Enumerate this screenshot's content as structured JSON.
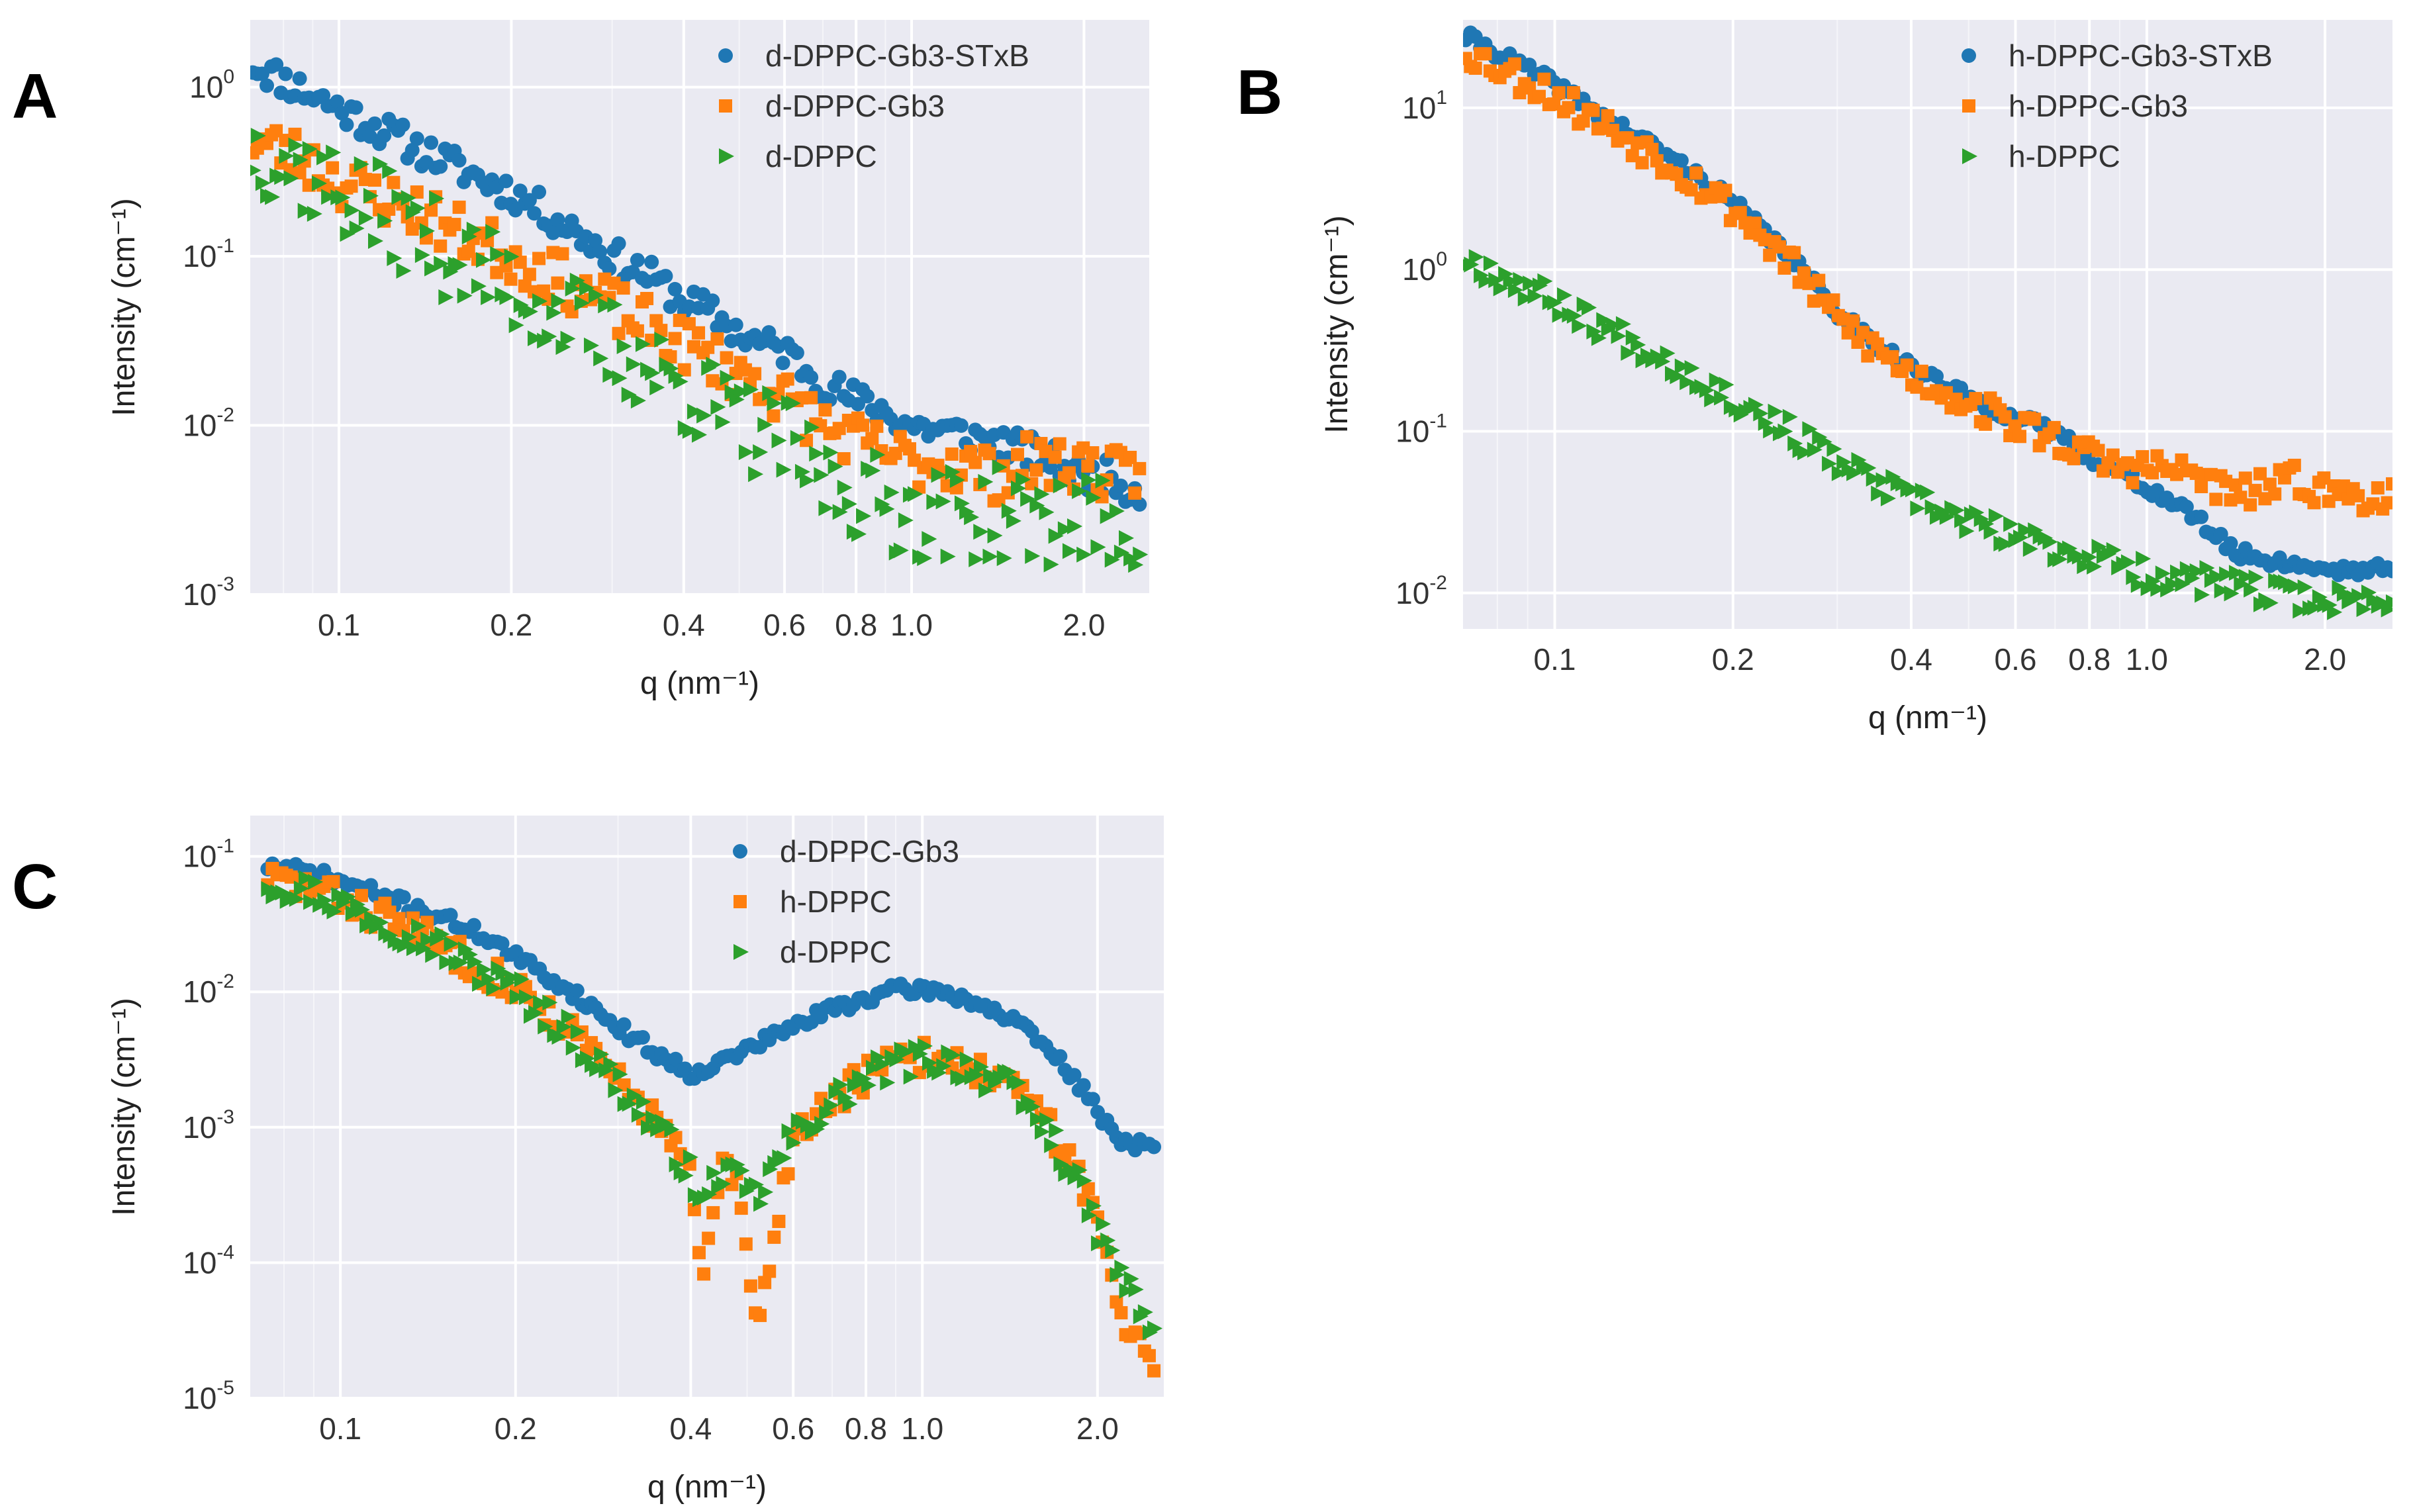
{
  "chart_data": [
    {
      "panel": "A",
      "type": "scatter",
      "xscale": "log",
      "yscale": "log",
      "xlim": [
        0.07,
        2.6
      ],
      "ylim": [
        0.001,
        2.5
      ],
      "xlabel": "q (nm⁻¹)",
      "ylabel": "Intensity (cm⁻¹)",
      "xticks": [
        0.1,
        0.2,
        0.4,
        0.6,
        0.8,
        1.0,
        2.0
      ],
      "xtick_labels": [
        "0.1",
        "0.2",
        "0.4",
        "0.6",
        "0.8",
        "1.0",
        "2.0"
      ],
      "yticks": [
        0.001,
        0.01,
        0.1,
        1
      ],
      "ytick_exponents": [
        "-3",
        "-2",
        "-1",
        "0"
      ],
      "ytick_base": "10",
      "legend_position": "top-right",
      "series": [
        {
          "name": "d-DPPC-Gb3-STxB",
          "marker": "circle",
          "color": "#1f77b4",
          "x": [
            0.07,
            0.08,
            0.09,
            0.1,
            0.12,
            0.14,
            0.16,
            0.18,
            0.2,
            0.23,
            0.26,
            0.3,
            0.35,
            0.4,
            0.45,
            0.5,
            0.55,
            0.6,
            0.65,
            0.7,
            0.8,
            0.9,
            1.0,
            1.2,
            1.4,
            1.6,
            1.8,
            2.0,
            2.2,
            2.5
          ],
          "values": [
            1.4,
            1.1,
            0.9,
            0.75,
            0.55,
            0.42,
            0.34,
            0.28,
            0.24,
            0.18,
            0.14,
            0.1,
            0.075,
            0.055,
            0.045,
            0.035,
            0.03,
            0.028,
            0.022,
            0.018,
            0.014,
            0.012,
            0.01,
            0.009,
            0.008,
            0.007,
            0.006,
            0.005,
            0.005,
            0.004
          ],
          "scatter": 0.1,
          "seed": 11
        },
        {
          "name": "d-DPPC-Gb3",
          "marker": "square",
          "color": "#ff7f0e",
          "x": [
            0.07,
            0.08,
            0.09,
            0.1,
            0.12,
            0.14,
            0.16,
            0.18,
            0.2,
            0.23,
            0.26,
            0.3,
            0.35,
            0.4,
            0.45,
            0.5,
            0.55,
            0.6,
            0.65,
            0.7,
            0.8,
            0.9,
            1.0,
            1.2,
            1.4,
            1.6,
            1.8,
            2.0,
            2.2,
            2.5
          ],
          "values": [
            0.5,
            0.42,
            0.35,
            0.28,
            0.22,
            0.18,
            0.14,
            0.12,
            0.1,
            0.08,
            0.065,
            0.05,
            0.038,
            0.03,
            0.025,
            0.02,
            0.018,
            0.014,
            0.012,
            0.01,
            0.008,
            0.007,
            0.006,
            0.006,
            0.005,
            0.006,
            0.006,
            0.006,
            0.005,
            0.005
          ],
          "scatter": 0.16,
          "seed": 23
        },
        {
          "name": "d-DPPC",
          "marker": "triangle-right",
          "color": "#2ca02c",
          "x": [
            0.07,
            0.08,
            0.09,
            0.1,
            0.12,
            0.14,
            0.16,
            0.18,
            0.2,
            0.23,
            0.26,
            0.3,
            0.35,
            0.4,
            0.45,
            0.5,
            0.55,
            0.6,
            0.65,
            0.7,
            0.8,
            0.9,
            1.0,
            1.2,
            1.4,
            1.6,
            1.8,
            2.0,
            2.2,
            2.5
          ],
          "values": [
            0.45,
            0.38,
            0.3,
            0.24,
            0.18,
            0.13,
            0.1,
            0.08,
            0.065,
            0.05,
            0.04,
            0.03,
            0.022,
            0.017,
            0.013,
            0.01,
            0.009,
            0.008,
            0.006,
            0.005,
            0.004,
            0.0035,
            0.003,
            0.003,
            0.003,
            0.0028,
            0.0028,
            0.0027,
            0.0026,
            0.0025
          ],
          "scatter": 0.28,
          "seed": 37
        }
      ]
    },
    {
      "panel": "B",
      "type": "scatter",
      "xscale": "log",
      "yscale": "log",
      "xlim": [
        0.07,
        2.6
      ],
      "ylim": [
        0.006,
        35
      ],
      "xlabel": "q (nm⁻¹)",
      "ylabel": "Intensity (cm⁻¹)",
      "xticks": [
        0.1,
        0.2,
        0.4,
        0.6,
        0.8,
        1.0,
        2.0
      ],
      "xtick_labels": [
        "0.1",
        "0.2",
        "0.4",
        "0.6",
        "0.8",
        "1.0",
        "2.0"
      ],
      "yticks": [
        0.01,
        0.1,
        1,
        10
      ],
      "ytick_exponents": [
        "-2",
        "-1",
        "0",
        "1"
      ],
      "ytick_base": "10",
      "legend_position": "top-right",
      "series": [
        {
          "name": "h-DPPC-Gb3-STxB",
          "marker": "circle",
          "color": "#1f77b4",
          "x": [
            0.07,
            0.08,
            0.1,
            0.12,
            0.15,
            0.18,
            0.2,
            0.25,
            0.3,
            0.35,
            0.4,
            0.5,
            0.6,
            0.7,
            0.8,
            0.9,
            1.0,
            1.2,
            1.4,
            1.6,
            1.8,
            2.0,
            2.3,
            2.6
          ],
          "values": [
            28,
            22,
            14,
            9,
            5.5,
            3.5,
            2.6,
            1.2,
            0.55,
            0.35,
            0.25,
            0.16,
            0.12,
            0.1,
            0.07,
            0.055,
            0.045,
            0.03,
            0.018,
            0.016,
            0.015,
            0.014,
            0.014,
            0.014
          ],
          "scatter": 0.04,
          "seed": 41
        },
        {
          "name": "h-DPPC-Gb3",
          "marker": "square",
          "color": "#ff7f0e",
          "x": [
            0.07,
            0.08,
            0.1,
            0.12,
            0.15,
            0.18,
            0.2,
            0.25,
            0.3,
            0.35,
            0.4,
            0.5,
            0.6,
            0.7,
            0.8,
            0.9,
            1.0,
            1.2,
            1.4,
            1.6,
            1.8,
            2.0,
            2.3,
            2.6
          ],
          "values": [
            23,
            18,
            12,
            8,
            5,
            3.2,
            2.4,
            1.1,
            0.5,
            0.32,
            0.22,
            0.15,
            0.11,
            0.09,
            0.07,
            0.06,
            0.06,
            0.055,
            0.04,
            0.045,
            0.05,
            0.042,
            0.04,
            0.04
          ],
          "scatter": 0.1,
          "seed": 53
        },
        {
          "name": "h-DPPC",
          "marker": "triangle-right",
          "color": "#2ca02c",
          "x": [
            0.07,
            0.08,
            0.1,
            0.12,
            0.15,
            0.18,
            0.2,
            0.25,
            0.3,
            0.35,
            0.4,
            0.5,
            0.6,
            0.7,
            0.8,
            0.9,
            1.0,
            1.2,
            1.4,
            1.6,
            1.8,
            2.0,
            2.3,
            2.6
          ],
          "values": [
            1.2,
            0.95,
            0.65,
            0.45,
            0.3,
            0.2,
            0.16,
            0.1,
            0.065,
            0.048,
            0.038,
            0.028,
            0.022,
            0.019,
            0.017,
            0.015,
            0.013,
            0.012,
            0.011,
            0.01,
            0.0095,
            0.009,
            0.009,
            0.009
          ],
          "scatter": 0.09,
          "seed": 67
        }
      ]
    },
    {
      "panel": "C",
      "type": "scatter",
      "xscale": "log",
      "yscale": "log",
      "xlim": [
        0.07,
        2.6
      ],
      "ylim": [
        1e-05,
        0.2
      ],
      "xlabel": "q (nm⁻¹)",
      "ylabel": "Intensity (cm⁻¹)",
      "xticks": [
        0.1,
        0.2,
        0.4,
        0.6,
        0.8,
        1.0,
        2.0
      ],
      "xtick_labels": [
        "0.1",
        "0.2",
        "0.4",
        "0.6",
        "0.8",
        "1.0",
        "2.0"
      ],
      "yticks": [
        1e-05,
        0.0001,
        0.001,
        0.01,
        0.1
      ],
      "ytick_exponents": [
        "-5",
        "-4",
        "-3",
        "-2",
        "-1"
      ],
      "ytick_base": "10",
      "legend_position": "top-right",
      "series": [
        {
          "name": "d-DPPC-Gb3",
          "marker": "circle",
          "color": "#1f77b4",
          "x": [
            0.075,
            0.09,
            0.1,
            0.12,
            0.15,
            0.18,
            0.2,
            0.25,
            0.3,
            0.35,
            0.4,
            0.45,
            0.5,
            0.6,
            0.7,
            0.8,
            0.9,
            1.0,
            1.1,
            1.2,
            1.4,
            1.6,
            1.8,
            2.0,
            2.2,
            2.5
          ],
          "values": [
            0.085,
            0.075,
            0.065,
            0.05,
            0.035,
            0.025,
            0.018,
            0.01,
            0.0055,
            0.0035,
            0.0025,
            0.003,
            0.0038,
            0.0055,
            0.0075,
            0.009,
            0.0102,
            0.0105,
            0.0098,
            0.0088,
            0.0065,
            0.0042,
            0.0025,
            0.0013,
            0.0008,
            0.0007
          ],
          "scatter": 0.05,
          "seed": 71
        },
        {
          "name": "h-DPPC",
          "marker": "square",
          "color": "#ff7f0e",
          "x": [
            0.075,
            0.09,
            0.1,
            0.12,
            0.15,
            0.18,
            0.2,
            0.25,
            0.3,
            0.35,
            0.38,
            0.4,
            0.42,
            0.45,
            0.48,
            0.52,
            0.6,
            0.7,
            0.8,
            0.9,
            1.0,
            1.1,
            1.2,
            1.4,
            1.6,
            1.8,
            2.0,
            2.2,
            2.5
          ],
          "values": [
            0.07,
            0.058,
            0.048,
            0.035,
            0.022,
            0.014,
            0.011,
            0.005,
            0.0022,
            0.0011,
            0.0007,
            0.0004,
            7e-05,
            0.0005,
            0.0004,
            3e-05,
            0.0009,
            0.0016,
            0.0024,
            0.003,
            0.0033,
            0.0032,
            0.0029,
            0.0021,
            0.0012,
            0.0006,
            0.0002,
            4e-05,
            2e-05
          ],
          "scatter": 0.12,
          "seed": 83
        },
        {
          "name": "d-DPPC",
          "marker": "triangle-right",
          "color": "#2ca02c",
          "x": [
            0.075,
            0.09,
            0.1,
            0.12,
            0.15,
            0.18,
            0.2,
            0.25,
            0.3,
            0.35,
            0.38,
            0.4,
            0.42,
            0.45,
            0.48,
            0.52,
            0.6,
            0.7,
            0.8,
            0.9,
            1.0,
            1.1,
            1.2,
            1.4,
            1.6,
            1.8,
            2.0,
            2.2,
            2.5
          ],
          "values": [
            0.065,
            0.055,
            0.045,
            0.033,
            0.021,
            0.013,
            0.0105,
            0.0048,
            0.0021,
            0.001,
            0.00065,
            0.00045,
            0.00025,
            0.0005,
            0.0004,
            0.0003,
            0.00085,
            0.0015,
            0.0023,
            0.0029,
            0.0032,
            0.0031,
            0.0028,
            0.002,
            0.0011,
            0.0005,
            0.00018,
            8e-05,
            3e-05
          ],
          "scatter": 0.12,
          "seed": 97
        }
      ]
    }
  ],
  "panels": [
    {
      "letter": "A"
    },
    {
      "letter": "B"
    },
    {
      "letter": "C"
    }
  ]
}
